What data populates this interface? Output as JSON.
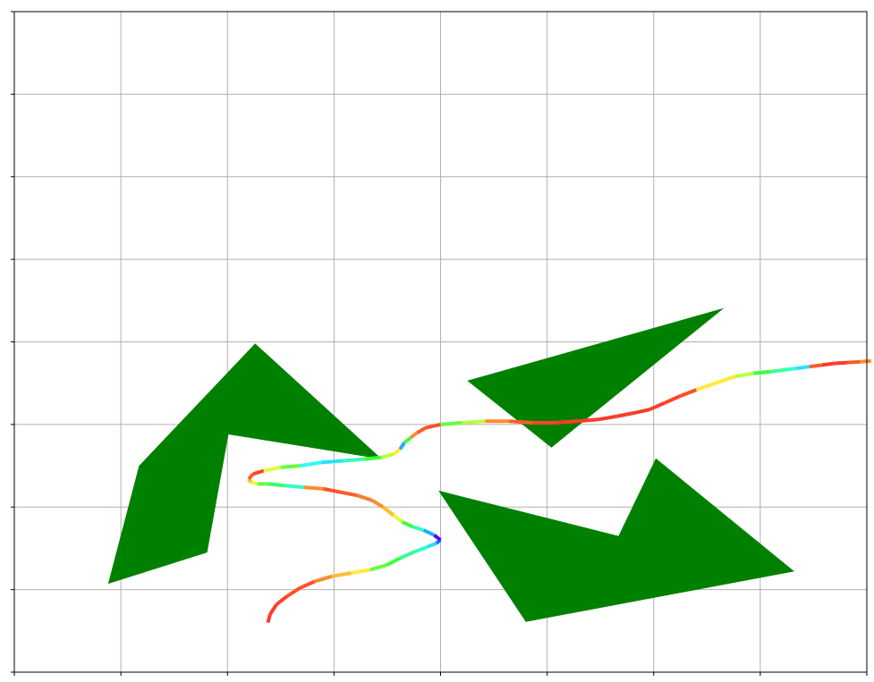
{
  "chart_data": {
    "type": "line",
    "title": "",
    "xlabel": "",
    "ylabel": "",
    "xlim": [
      0,
      8
    ],
    "ylim": [
      0,
      8
    ],
    "grid": true,
    "tick_labels_visible": false,
    "colors": {
      "obstacle": "#008000",
      "grid": "#b0b0b0",
      "axes": "#000000",
      "path_colormap": "rainbow"
    },
    "obstacles": [
      {
        "name": "obstacle-left",
        "points": [
          [
            1.17,
            2.5
          ],
          [
            2.26,
            3.98
          ],
          [
            3.45,
            2.58
          ],
          [
            2.01,
            2.88
          ],
          [
            1.81,
            1.45
          ],
          [
            0.88,
            1.07
          ]
        ]
      },
      {
        "name": "obstacle-top-right",
        "points": [
          [
            4.25,
            3.53
          ],
          [
            6.66,
            4.41
          ],
          [
            5.04,
            2.72
          ]
        ]
      },
      {
        "name": "obstacle-bottom-right",
        "points": [
          [
            3.98,
            2.2
          ],
          [
            5.67,
            1.65
          ],
          [
            6.02,
            2.59
          ],
          [
            7.32,
            1.22
          ],
          [
            4.8,
            0.61
          ]
        ]
      }
    ],
    "path": {
      "x": [
        2.38,
        2.4,
        2.46,
        2.56,
        2.68,
        2.82,
        2.98,
        3.16,
        3.34,
        3.5,
        3.62,
        3.76,
        3.88,
        3.96,
        4.0,
        3.94,
        3.84,
        3.74,
        3.64,
        3.56,
        3.46,
        3.36,
        3.22,
        3.06,
        2.9,
        2.72,
        2.54,
        2.38,
        2.28,
        2.22,
        2.2,
        2.24,
        2.34,
        2.5,
        2.68,
        2.88,
        3.08,
        3.28,
        3.44,
        3.56,
        3.62,
        3.66,
        3.72,
        3.78,
        3.86,
        4.0,
        4.2,
        4.42,
        4.64,
        4.86,
        5.08,
        5.28,
        5.48,
        5.66,
        5.82,
        5.96,
        6.1,
        6.24,
        6.4,
        6.58,
        6.76,
        6.94,
        7.1,
        7.22,
        7.34,
        7.46,
        7.58,
        7.7,
        7.82,
        7.94,
        8.04
      ],
      "y": [
        0.6,
        0.7,
        0.82,
        0.92,
        1.02,
        1.1,
        1.16,
        1.2,
        1.24,
        1.3,
        1.38,
        1.46,
        1.52,
        1.56,
        1.6,
        1.66,
        1.72,
        1.76,
        1.82,
        1.9,
        2.0,
        2.08,
        2.14,
        2.18,
        2.22,
        2.24,
        2.26,
        2.28,
        2.28,
        2.3,
        2.34,
        2.4,
        2.44,
        2.48,
        2.5,
        2.54,
        2.56,
        2.58,
        2.6,
        2.64,
        2.7,
        2.78,
        2.84,
        2.9,
        2.96,
        3.0,
        3.02,
        3.04,
        3.04,
        3.02,
        3.02,
        3.04,
        3.06,
        3.1,
        3.14,
        3.18,
        3.26,
        3.34,
        3.42,
        3.5,
        3.58,
        3.62,
        3.64,
        3.66,
        3.68,
        3.7,
        3.72,
        3.74,
        3.75,
        3.76,
        3.77
      ],
      "color_values": [
        0.98,
        0.98,
        0.97,
        0.96,
        0.96,
        0.9,
        0.85,
        0.8,
        0.6,
        0.55,
        0.45,
        0.4,
        0.3,
        0.2,
        0.05,
        0.25,
        0.4,
        0.55,
        0.75,
        0.85,
        0.9,
        0.92,
        0.95,
        0.96,
        0.9,
        0.4,
        0.5,
        0.6,
        0.75,
        0.85,
        0.95,
        0.97,
        0.75,
        0.6,
        0.35,
        0.3,
        0.4,
        0.55,
        0.7,
        0.8,
        0.25,
        0.55,
        0.9,
        0.95,
        0.96,
        0.6,
        0.7,
        0.9,
        0.95,
        0.97,
        0.98,
        0.98,
        0.98,
        0.98,
        0.98,
        0.98,
        0.97,
        0.96,
        0.8,
        0.8,
        0.7,
        0.55,
        0.45,
        0.4,
        0.3,
        0.95,
        0.98,
        0.98,
        0.95,
        0.9,
        0.85
      ]
    }
  }
}
